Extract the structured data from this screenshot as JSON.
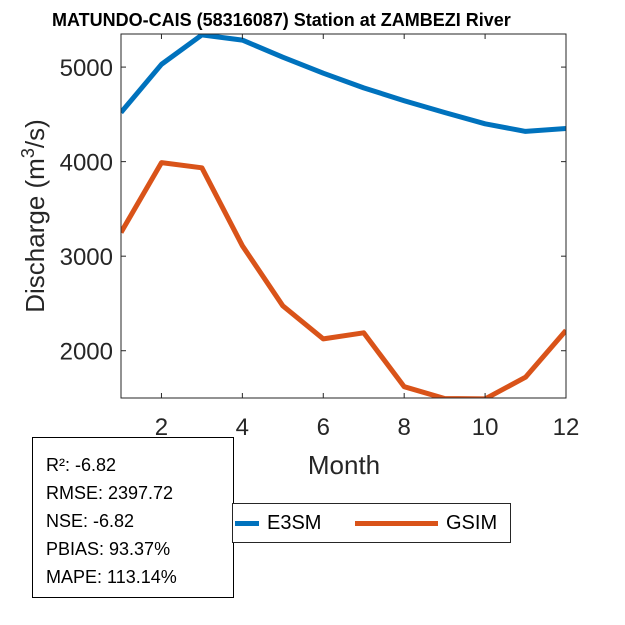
{
  "chart_data": {
    "type": "line",
    "title": "MATUNDO-CAIS (58316087)  Station at  ZAMBEZI  River",
    "xlabel": "Month",
    "ylabel": "Discharge (m³/s)",
    "ylabel_parts": {
      "before": "Discharge (m",
      "sup": "3",
      "after": "/s)"
    },
    "xlim": [
      1,
      12
    ],
    "ylim": [
      1500,
      5350
    ],
    "xticks": [
      2,
      4,
      6,
      8,
      10,
      12
    ],
    "xtick_labels": [
      "2",
      "4",
      "6",
      "8",
      "10",
      "12"
    ],
    "yticks": [
      2000,
      3000,
      4000,
      5000
    ],
    "ytick_labels": [
      "2000",
      "3000",
      "4000",
      "5000"
    ],
    "grid": false,
    "x": [
      1,
      2,
      3,
      4,
      5,
      6,
      7,
      8,
      9,
      10,
      11,
      12
    ],
    "series": [
      {
        "name": "E3SM",
        "color": "#0072BD",
        "values": [
          4520,
          5030,
          5340,
          5285,
          5105,
          4935,
          4780,
          4645,
          4520,
          4400,
          4320,
          4350
        ]
      },
      {
        "name": "GSIM",
        "color": "#D95319",
        "values": [
          3250,
          3990,
          3935,
          3110,
          2475,
          2125,
          2190,
          1620,
          1495,
          1490,
          1720,
          2215
        ]
      }
    ],
    "legend": {
      "placement": "bottom-center",
      "entries": [
        "E3SM",
        "GSIM"
      ]
    },
    "annotations": {
      "stats": [
        "R²: -6.82",
        "RMSE: 2397.72",
        "NSE: -6.82",
        "PBIAS: 93.37%",
        "MAPE: 113.14%"
      ]
    }
  }
}
